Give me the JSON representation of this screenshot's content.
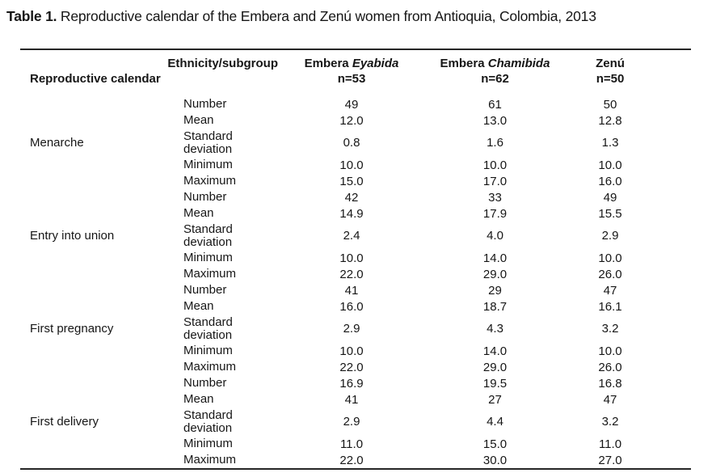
{
  "title": {
    "label": "Table 1.",
    "text": " Reproductive calendar of the Embera and Zenú women from Antioquia, Colombia, 2013"
  },
  "table": {
    "header": {
      "top_left": "Ethnicity/subgroup",
      "bottom_left": "Reproductive calendar",
      "columns": [
        {
          "name": "Embera",
          "subgroup": "Eyabida",
          "n": "n=53"
        },
        {
          "name": "Embera",
          "subgroup": "Chamibida",
          "n": "n=62"
        },
        {
          "name": "Zenú",
          "subgroup": "",
          "n": "n=50"
        }
      ]
    },
    "sections": [
      {
        "label": "Menarche",
        "rows": [
          {
            "stat": "Number",
            "values": [
              "49",
              "61",
              "50"
            ]
          },
          {
            "stat": "Mean",
            "values": [
              "12.0",
              "13.0",
              "12.8"
            ]
          },
          {
            "stat": "Standard deviation",
            "values": [
              "0.8",
              "1.6",
              "1.3"
            ]
          },
          {
            "stat": "Minimum",
            "values": [
              "10.0",
              "10.0",
              "10.0"
            ]
          },
          {
            "stat": "Maximum",
            "values": [
              "15.0",
              "17.0",
              "16.0"
            ]
          }
        ]
      },
      {
        "label": "Entry into union",
        "rows": [
          {
            "stat": "Number",
            "values": [
              "42",
              "33",
              "49"
            ]
          },
          {
            "stat": "Mean",
            "values": [
              "14.9",
              "17.9",
              "15.5"
            ]
          },
          {
            "stat": "Standard deviation",
            "values": [
              "2.4",
              "4.0",
              "2.9"
            ]
          },
          {
            "stat": "Minimum",
            "values": [
              "10.0",
              "14.0",
              "10.0"
            ]
          },
          {
            "stat": "Maximum",
            "values": [
              "22.0",
              "29.0",
              "26.0"
            ]
          }
        ]
      },
      {
        "label": "First pregnancy",
        "rows": [
          {
            "stat": "Number",
            "values": [
              "41",
              "29",
              "47"
            ]
          },
          {
            "stat": "Mean",
            "values": [
              "16.0",
              "18.7",
              "16.1"
            ]
          },
          {
            "stat": "Standard deviation",
            "values": [
              "2.9",
              "4.3",
              "3.2"
            ]
          },
          {
            "stat": "Minimum",
            "values": [
              "10.0",
              "14.0",
              "10.0"
            ]
          },
          {
            "stat": "Maximum",
            "values": [
              "22.0",
              "29.0",
              "26.0"
            ]
          }
        ]
      },
      {
        "label": "First delivery",
        "rows": [
          {
            "stat": "Number",
            "values": [
              "16.9",
              "19.5",
              "16.8"
            ]
          },
          {
            "stat": "Mean",
            "values": [
              "41",
              "27",
              "47"
            ]
          },
          {
            "stat": "Standard deviation",
            "values": [
              "2.9",
              "4.4",
              "3.2"
            ]
          },
          {
            "stat": "Minimum",
            "values": [
              "11.0",
              "15.0",
              "11.0"
            ]
          },
          {
            "stat": "Maximum",
            "values": [
              "22.0",
              "30.0",
              "27.0"
            ]
          }
        ]
      }
    ]
  }
}
